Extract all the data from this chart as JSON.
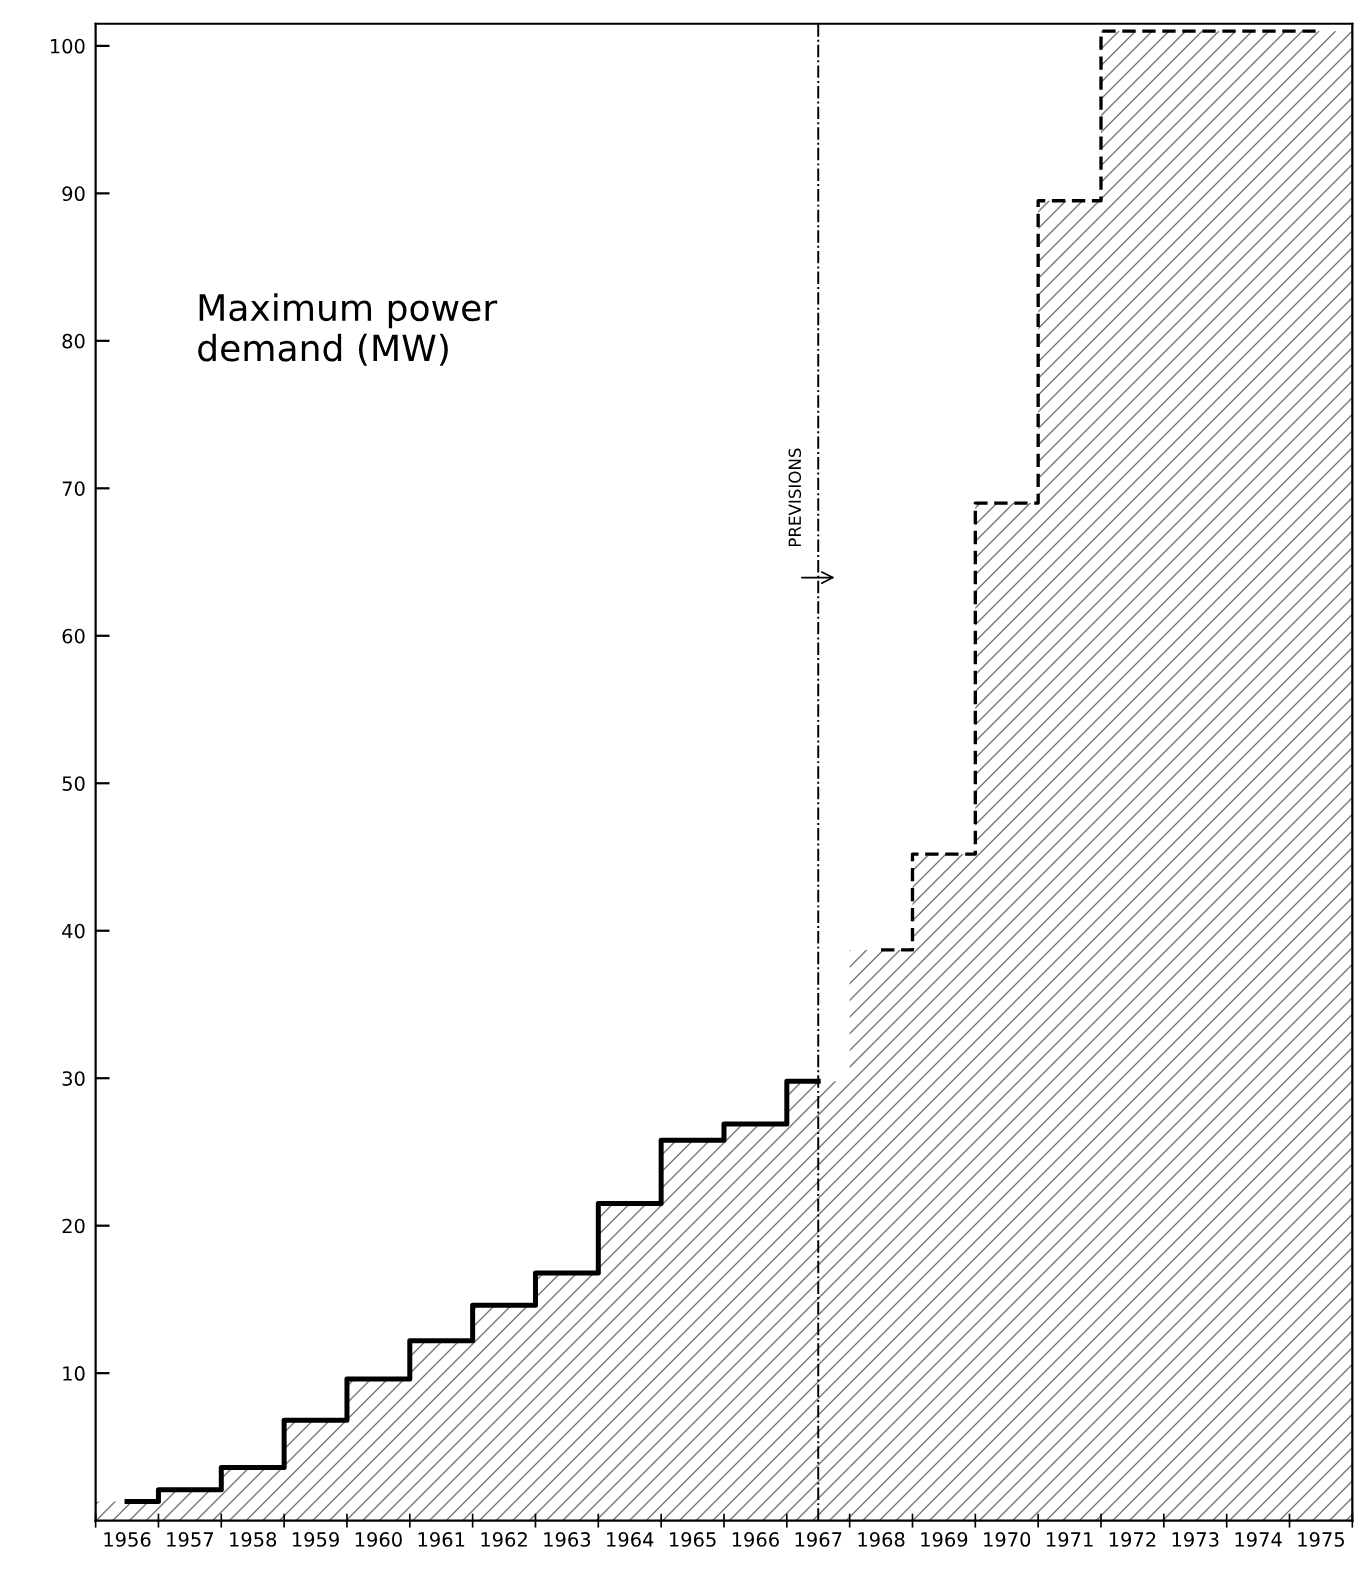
{
  "chart_data": {
    "type": "step",
    "title": "Maximum power\ndemand (MW)",
    "categories": [
      "1956",
      "1957",
      "1958",
      "1959",
      "1960",
      "1961",
      "1962",
      "1963",
      "1964",
      "1965",
      "1966",
      "1967",
      "1968",
      "1969",
      "1970",
      "1971",
      "1972",
      "1973",
      "1974",
      "1975"
    ],
    "series": [
      {
        "color": "#000000",
        "line_style": "solid",
        "values": [
          1.3,
          2.1,
          3.6,
          6.8,
          9.6,
          12.2,
          14.6,
          16.8,
          21.5,
          25.8,
          26.9,
          29.8,
          null,
          null,
          null,
          null,
          null,
          null,
          null,
          null
        ]
      },
      {
        "color": "#000000",
        "line_style": "dashed",
        "values": [
          null,
          null,
          null,
          null,
          null,
          null,
          null,
          null,
          null,
          null,
          null,
          null,
          38.7,
          45.2,
          69,
          89.5,
          101,
          101,
          101,
          101
        ]
      }
    ],
    "ylim": [
      0,
      101.5
    ],
    "yticks": [
      10,
      20,
      30,
      40,
      50,
      60,
      70,
      80,
      90,
      100
    ],
    "ref_lines": [
      {
        "axis": "x",
        "value": "1967",
        "label": "PREVISIONS",
        "line_style": "dashdot",
        "color": "#000000"
      }
    ],
    "grid": false,
    "legend": false
  }
}
